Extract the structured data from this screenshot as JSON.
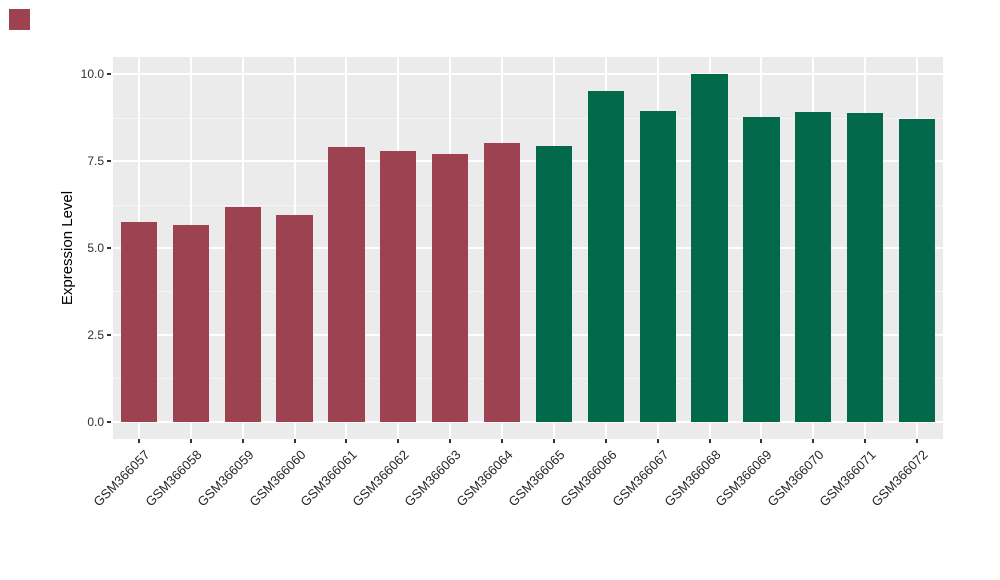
{
  "marker": {
    "color": "#9C4250"
  },
  "chart_data": {
    "type": "bar",
    "categories": [
      "GSM366057",
      "GSM366058",
      "GSM366059",
      "GSM366060",
      "GSM366061",
      "GSM366062",
      "GSM366063",
      "GSM366064",
      "GSM366065",
      "GSM366066",
      "GSM366067",
      "GSM366068",
      "GSM366069",
      "GSM366070",
      "GSM366071",
      "GSM366072"
    ],
    "values": [
      5.76,
      5.67,
      6.19,
      5.96,
      7.91,
      7.8,
      7.71,
      8.03,
      7.94,
      9.51,
      8.94,
      10.0,
      8.77,
      8.92,
      8.89,
      8.71
    ],
    "bar_colors": [
      "#9C4250",
      "#9C4250",
      "#9C4250",
      "#9C4250",
      "#9C4250",
      "#9C4250",
      "#9C4250",
      "#9C4250",
      "#026A4A",
      "#026A4A",
      "#026A4A",
      "#026A4A",
      "#026A4A",
      "#026A4A",
      "#026A4A",
      "#026A4A"
    ],
    "group_colors": {
      "left_group": "#9C4250",
      "right_group": "#026A4A"
    },
    "xlabel": "",
    "ylabel": "Expression Level",
    "ylim": [
      -0.5,
      10.5
    ],
    "yticks": [
      0.0,
      2.5,
      5.0,
      7.5,
      10.0
    ],
    "ytick_labels": [
      "0.0",
      "2.5",
      "5.0",
      "7.5",
      "10.0"
    ],
    "yticks_minor": [
      1.25,
      3.75,
      6.25,
      8.75
    ],
    "grid": true,
    "legend_position": "none",
    "panel_background": "#EBEBEB",
    "figure_background": "#FFFFFF",
    "bar_width_fraction": 0.7,
    "x_label_rotation_deg": 45
  }
}
